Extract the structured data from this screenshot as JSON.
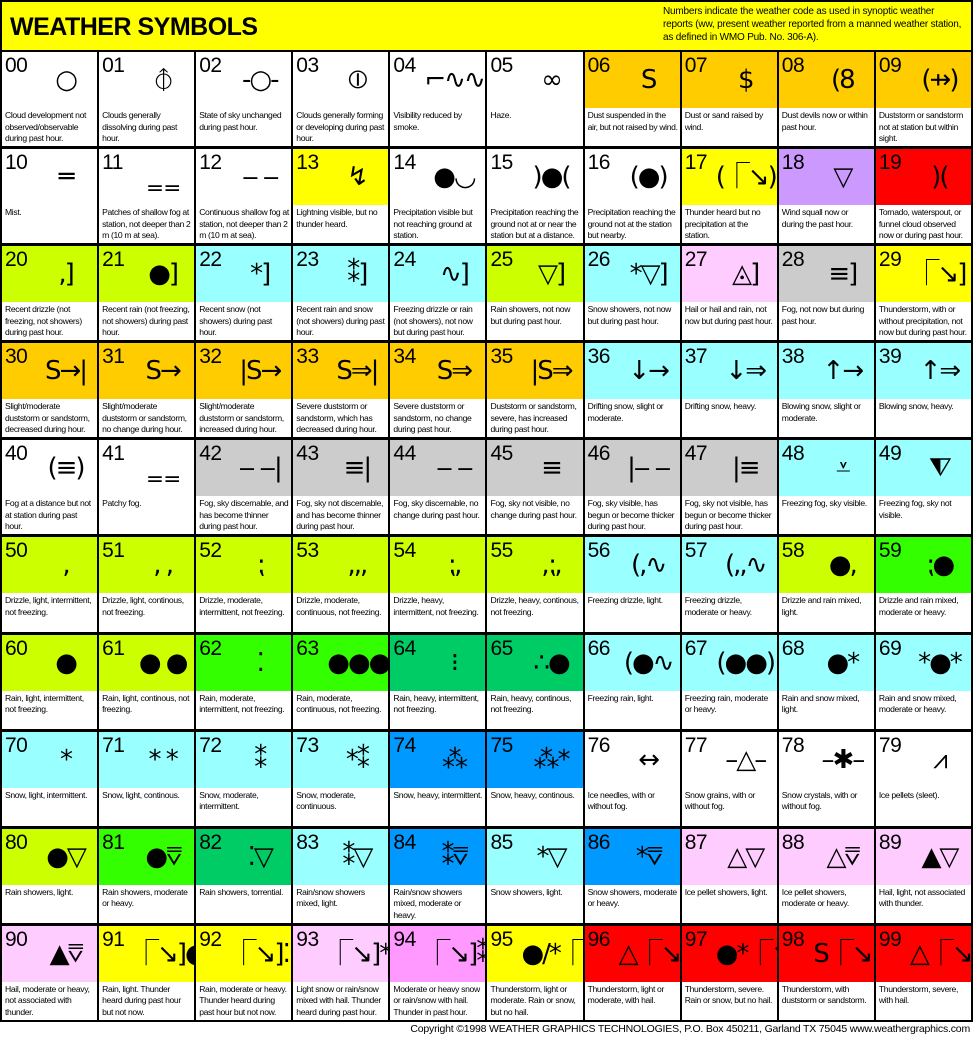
{
  "header": {
    "title": "WEATHER SYMBOLS",
    "note": "Numbers indicate the weather code as used in synoptic weather reports (ww, present weather reported from a manned weather station, as defined in WMO Pub. No. 306-A)."
  },
  "colors": {
    "white": "#ffffff",
    "orange": "#ffcc00",
    "yellow": "#ffff00",
    "purple": "#cc99ff",
    "red": "#ff0000",
    "lime": "#ccff00",
    "cyan": "#99ffff",
    "pink": "#ffccff",
    "gray": "#cccccc",
    "green": "#33ff00",
    "darkgreen": "#00cc66",
    "blue": "#0099ff",
    "magenta": "#ff99ff"
  },
  "cells": [
    {
      "code": "00",
      "color": "white",
      "glyph": "○",
      "symbol": "circle-dot-top",
      "desc": "Cloud development not observed/observable during past hour."
    },
    {
      "code": "01",
      "color": "white",
      "glyph": "⦽",
      "symbol": "circle-tick-bottom",
      "desc": "Clouds generally dissolving during past hour."
    },
    {
      "code": "02",
      "color": "white",
      "glyph": "-○-",
      "symbol": "circle-ticks-sides",
      "desc": "State of sky unchanged during past hour."
    },
    {
      "code": "03",
      "color": "white",
      "glyph": "⦶",
      "symbol": "circle-tick-top",
      "desc": "Clouds generally forming or developing during past hour."
    },
    {
      "code": "04",
      "color": "white",
      "glyph": "⌐∿∿",
      "symbol": "smoke",
      "desc": "Visibility reduced by smoke."
    },
    {
      "code": "05",
      "color": "white",
      "glyph": "∞",
      "symbol": "haze",
      "desc": "Haze."
    },
    {
      "code": "06",
      "color": "orange",
      "glyph": "S",
      "symbol": "dust",
      "desc": "Dust suspended in the air, but not raised by wind."
    },
    {
      "code": "07",
      "color": "orange",
      "glyph": "$",
      "symbol": "dust-raised",
      "desc": "Dust or sand raised by wind."
    },
    {
      "code": "08",
      "color": "orange",
      "glyph": "(8",
      "symbol": "dust-devil",
      "desc": "Dust devils now or within past hour."
    },
    {
      "code": "09",
      "color": "orange",
      "glyph": "(⇸)",
      "symbol": "duststorm-distant",
      "desc": "Duststorm or sandstorm not at station but within sight."
    },
    {
      "code": "10",
      "color": "white",
      "glyph": "═",
      "symbol": "mist",
      "desc": "Mist."
    },
    {
      "code": "11",
      "color": "white",
      "glyph": "‗ ‗",
      "symbol": "shallow-fog-patches",
      "desc": "Patches of shallow fog at station, not deeper than 2 m (10 m at sea)."
    },
    {
      "code": "12",
      "color": "white",
      "glyph": "‒ ‒",
      "symbol": "shallow-fog-continuous",
      "desc": "Continuous shallow fog at station, not deeper than 2 m (10 m at sea)."
    },
    {
      "code": "13",
      "color": "yellow",
      "glyph": "↯",
      "symbol": "lightning",
      "desc": "Lightning visible, but no thunder heard."
    },
    {
      "code": "14",
      "color": "white",
      "glyph": "●◡",
      "symbol": "virga",
      "desc": "Precipitation visible but not reaching ground at station."
    },
    {
      "code": "15",
      "color": "white",
      "glyph": ")●(",
      "symbol": "precip-distant",
      "desc": "Precipitation reaching the ground not at or near the station but at a distance."
    },
    {
      "code": "16",
      "color": "white",
      "glyph": "(●)",
      "symbol": "precip-nearby",
      "desc": "Precipitation reaching the ground not at the station but nearby."
    },
    {
      "code": "17",
      "color": "yellow",
      "glyph": "(⎾↘)",
      "symbol": "thunder",
      "desc": "Thunder heard but no precipitation at the station."
    },
    {
      "code": "18",
      "color": "purple",
      "glyph": "▽",
      "symbol": "squall",
      "desc": "Wind squall now or during the past hour."
    },
    {
      "code": "19",
      "color": "red",
      "glyph": ")(",
      "symbol": "funnel-cloud",
      "desc": "Tornado, waterspout, or funnel cloud observed now or during past hour."
    },
    {
      "code": "20",
      "color": "lime",
      "glyph": ",]",
      "symbol": "recent-drizzle",
      "desc": "Recent drizzle (not freezing, not showers) during past hour."
    },
    {
      "code": "21",
      "color": "lime",
      "glyph": "●]",
      "symbol": "recent-rain",
      "desc": "Recent rain (not freezing, not showers) during past hour."
    },
    {
      "code": "22",
      "color": "cyan",
      "glyph": "*]",
      "symbol": "recent-snow",
      "desc": "Recent snow (not showers) during past hour."
    },
    {
      "code": "23",
      "color": "cyan",
      "glyph": "⁑]",
      "symbol": "recent-rain-snow",
      "desc": "Recent rain and snow (not showers) during past hour."
    },
    {
      "code": "24",
      "color": "cyan",
      "glyph": "∿]",
      "symbol": "recent-freezing-rain",
      "desc": "Freezing drizzle or rain (not showers), not now but during past hour."
    },
    {
      "code": "25",
      "color": "lime",
      "glyph": "▽]",
      "symbol": "recent-rain-showers",
      "desc": "Rain showers, not now but during past hour."
    },
    {
      "code": "26",
      "color": "cyan",
      "glyph": "*▽]",
      "symbol": "recent-snow-showers",
      "desc": "Snow showers, not now but during past hour."
    },
    {
      "code": "27",
      "color": "pink",
      "glyph": "◬]",
      "symbol": "recent-hail",
      "desc": "Hail or hail and rain, not now but during past hour."
    },
    {
      "code": "28",
      "color": "gray",
      "glyph": "≡]",
      "symbol": "recent-fog",
      "desc": "Fog, not now but during past hour."
    },
    {
      "code": "29",
      "color": "yellow",
      "glyph": "⎾↘]",
      "symbol": "recent-thunderstorm",
      "desc": "Thunderstorm, with or without precipitation, not now but during past hour."
    },
    {
      "code": "30",
      "color": "orange",
      "glyph": "S→|",
      "symbol": "duststorm-decreased",
      "desc": "Slight/moderate duststorm or sandstorm, decreased during hour."
    },
    {
      "code": "31",
      "color": "orange",
      "glyph": "S→",
      "symbol": "duststorm-nochange",
      "desc": "Slight/moderate duststorm or sandstorm, no change during hour."
    },
    {
      "code": "32",
      "color": "orange",
      "glyph": "|S→",
      "symbol": "duststorm-increased",
      "desc": "Slight/moderate duststorm or sandstorm, increased during hour."
    },
    {
      "code": "33",
      "color": "orange",
      "glyph": "S⇒|",
      "symbol": "severe-duststorm-decreased",
      "desc": "Severe duststorm or sandstorm, which has decreased during hour."
    },
    {
      "code": "34",
      "color": "orange",
      "glyph": "S⇒",
      "symbol": "severe-duststorm-nochange",
      "desc": "Severe duststorm or sandstorm, no change during past hour."
    },
    {
      "code": "35",
      "color": "orange",
      "glyph": "|S⇒",
      "symbol": "severe-duststorm-increased",
      "desc": "Duststorm or sandstorm, severe, has increased during past hour."
    },
    {
      "code": "36",
      "color": "cyan",
      "glyph": "↓→",
      "symbol": "drifting-snow",
      "desc": "Drifting snow, slight or moderate."
    },
    {
      "code": "37",
      "color": "cyan",
      "glyph": "↓⇒",
      "symbol": "drifting-snow-heavy",
      "desc": "Drifting snow, heavy."
    },
    {
      "code": "38",
      "color": "cyan",
      "glyph": "↑→",
      "symbol": "blowing-snow",
      "desc": "Blowing snow, slight or moderate."
    },
    {
      "code": "39",
      "color": "cyan",
      "glyph": "↑⇒",
      "symbol": "blowing-snow-heavy",
      "desc": "Blowing snow, heavy."
    },
    {
      "code": "40",
      "color": "white",
      "glyph": "(≡)",
      "symbol": "fog-distance",
      "desc": "Fog at a distance but not at station during past hour."
    },
    {
      "code": "41",
      "color": "white",
      "glyph": "‗ ‗",
      "symbol": "patchy-fog",
      "desc": "Patchy fog."
    },
    {
      "code": "42",
      "color": "gray",
      "glyph": "‒ ‒|",
      "symbol": "fog-thinner-sky",
      "desc": "Fog, sky discernable, and has become thinner during past hour."
    },
    {
      "code": "43",
      "color": "gray",
      "glyph": "≡|",
      "symbol": "fog-thinner",
      "desc": "Fog, sky not discernable, and has become thinner during past hour."
    },
    {
      "code": "44",
      "color": "gray",
      "glyph": "‒ ‒",
      "symbol": "fog-nochange-sky",
      "desc": "Fog, sky discernable, no change during past hour."
    },
    {
      "code": "45",
      "color": "gray",
      "glyph": "≡",
      "symbol": "fog-nochange",
      "desc": "Fog, sky not visible, no change during past hour."
    },
    {
      "code": "46",
      "color": "gray",
      "glyph": "|‒ ‒",
      "symbol": "fog-thicker-sky",
      "desc": "Fog, sky visible, has begun or become thicker during past hour."
    },
    {
      "code": "47",
      "color": "gray",
      "glyph": "|≡",
      "symbol": "fog-thicker",
      "desc": "Fog, sky not visible, has begun or become thicker during past hour."
    },
    {
      "code": "48",
      "color": "cyan",
      "glyph": "⩡",
      "symbol": "freezing-fog-sky",
      "desc": "Freezing fog, sky visible."
    },
    {
      "code": "49",
      "color": "cyan",
      "glyph": "⧨",
      "symbol": "freezing-fog",
      "desc": "Freezing fog, sky not visible."
    },
    {
      "code": "50",
      "color": "lime",
      "glyph": ",",
      "symbol": "drizzle-light-intermittent",
      "desc": "Drizzle, light, intermittent, not freezing."
    },
    {
      "code": "51",
      "color": "lime",
      "glyph": ", ,",
      "symbol": "drizzle-light-continuous",
      "desc": "Drizzle, light, continous, not freezing."
    },
    {
      "code": "52",
      "color": "lime",
      "glyph": "⁏",
      "symbol": "drizzle-moderate-intermittent",
      "desc": "Drizzle, moderate, intermittent, not freezing."
    },
    {
      "code": "53",
      "color": "lime",
      "glyph": ",,,",
      "symbol": "drizzle-moderate-continuous",
      "desc": "Drizzle, moderate, continuous, not freezing."
    },
    {
      "code": "54",
      "color": "lime",
      "glyph": "⁏,",
      "symbol": "drizzle-heavy-intermittent",
      "desc": "Drizzle, heavy, intermittent, not freezing."
    },
    {
      "code": "55",
      "color": "lime",
      "glyph": ",⁏,",
      "symbol": "drizzle-heavy-continuous",
      "desc": "Drizzle, heavy, continous, not freezing."
    },
    {
      "code": "56",
      "color": "cyan",
      "glyph": "(,∿",
      "symbol": "freezing-drizzle-light",
      "desc": "Freezing drizzle, light."
    },
    {
      "code": "57",
      "color": "cyan",
      "glyph": "(,,∿",
      "symbol": "freezing-drizzle-heavy",
      "desc": "Freezing drizzle, moderate or heavy."
    },
    {
      "code": "58",
      "color": "lime",
      "glyph": "●,",
      "symbol": "drizzle-rain-light",
      "desc": "Drizzle and rain mixed, light."
    },
    {
      "code": "59",
      "color": "green",
      "glyph": "⁏●",
      "symbol": "drizzle-rain-heavy",
      "desc": "Drizzle and rain mixed, moderate or heavy."
    },
    {
      "code": "60",
      "color": "lime",
      "glyph": "●",
      "symbol": "rain-light-intermittent",
      "desc": "Rain, light, intermittent, not freezing."
    },
    {
      "code": "61",
      "color": "lime",
      "glyph": "● ●",
      "symbol": "rain-light-continuous",
      "desc": "Rain, light, continous, not freezing."
    },
    {
      "code": "62",
      "color": "green",
      "glyph": "⁚",
      "symbol": "rain-moderate-intermittent",
      "desc": "Rain, moderate, intermittent, not freezing."
    },
    {
      "code": "63",
      "color": "green",
      "glyph": "●●●",
      "symbol": "rain-moderate-continuous",
      "desc": "Rain, moderate, continuous, not freezing."
    },
    {
      "code": "64",
      "color": "darkgreen",
      "glyph": "⁝",
      "symbol": "rain-heavy-intermittent",
      "desc": "Rain, heavy, intermittent, not freezing."
    },
    {
      "code": "65",
      "color": "darkgreen",
      "glyph": "∴●",
      "symbol": "rain-heavy-continuous",
      "desc": "Rain, heavy, continous, not freezing."
    },
    {
      "code": "66",
      "color": "cyan",
      "glyph": "(●∿",
      "symbol": "freezing-rain-light",
      "desc": "Freezing rain, light."
    },
    {
      "code": "67",
      "color": "cyan",
      "glyph": "(●●)",
      "symbol": "freezing-rain-heavy",
      "desc": "Freezing rain, moderate or heavy."
    },
    {
      "code": "68",
      "color": "cyan",
      "glyph": "●*",
      "symbol": "rain-snow-light",
      "desc": "Rain and snow mixed, light."
    },
    {
      "code": "69",
      "color": "cyan",
      "glyph": "*●*",
      "symbol": "rain-snow-heavy",
      "desc": "Rain and snow mixed, moderate or heavy."
    },
    {
      "code": "70",
      "color": "cyan",
      "glyph": "*",
      "symbol": "snow-light-intermittent",
      "desc": "Snow, light, intermittent."
    },
    {
      "code": "71",
      "color": "cyan",
      "glyph": "* *",
      "symbol": "snow-light-continuous",
      "desc": "Snow, light, continous."
    },
    {
      "code": "72",
      "color": "cyan",
      "glyph": "⁑",
      "symbol": "snow-moderate-intermittent",
      "desc": "Snow, moderate, intermittent."
    },
    {
      "code": "73",
      "color": "cyan",
      "glyph": "*⁑",
      "symbol": "snow-moderate-continuous",
      "desc": "Snow, moderate, continuous."
    },
    {
      "code": "74",
      "color": "blue",
      "glyph": "⁂",
      "symbol": "snow-heavy-intermittent",
      "desc": "Snow, heavy, intermittent."
    },
    {
      "code": "75",
      "color": "blue",
      "glyph": "⁂*",
      "symbol": "snow-heavy-continuous",
      "desc": "Snow, heavy, continous."
    },
    {
      "code": "76",
      "color": "white",
      "glyph": "↔",
      "symbol": "ice-needles",
      "desc": "Ice needles, with or without fog."
    },
    {
      "code": "77",
      "color": "white",
      "glyph": "–△–",
      "symbol": "snow-grains",
      "desc": "Snow grains, with or without fog."
    },
    {
      "code": "78",
      "color": "white",
      "glyph": "–✱–",
      "symbol": "snow-crystals",
      "desc": "Snow crystals, with or without fog."
    },
    {
      "code": "79",
      "color": "white",
      "glyph": "⩘",
      "symbol": "ice-pellets",
      "desc": "Ice pellets (sleet)."
    },
    {
      "code": "80",
      "color": "lime",
      "glyph": "●▽",
      "symbol": "rain-showers-light",
      "desc": "Rain showers, light."
    },
    {
      "code": "81",
      "color": "green",
      "glyph": "●⩢",
      "symbol": "rain-showers-heavy",
      "desc": "Rain showers, moderate or heavy."
    },
    {
      "code": "82",
      "color": "darkgreen",
      "glyph": "⁚▽",
      "symbol": "rain-showers-torrential",
      "desc": "Rain showers, torrential."
    },
    {
      "code": "83",
      "color": "cyan",
      "glyph": "⁑▽",
      "symbol": "rain-snow-showers-light",
      "desc": "Rain/snow showers mixed, light."
    },
    {
      "code": "84",
      "color": "blue",
      "glyph": "⁑⩢",
      "symbol": "rain-snow-showers-heavy",
      "desc": "Rain/snow showers mixed, moderate or heavy."
    },
    {
      "code": "85",
      "color": "cyan",
      "glyph": "*▽",
      "symbol": "snow-showers-light",
      "desc": "Snow showers, light."
    },
    {
      "code": "86",
      "color": "blue",
      "glyph": "*⩢",
      "symbol": "snow-showers-heavy",
      "desc": "Snow showers, moderate or heavy."
    },
    {
      "code": "87",
      "color": "pink",
      "glyph": "△▽",
      "symbol": "ice-pellet-showers-light",
      "desc": "Ice pellet showers, light."
    },
    {
      "code": "88",
      "color": "pink",
      "glyph": "△⩢",
      "symbol": "ice-pellet-showers-heavy",
      "desc": "Ice pellet showers, moderate or heavy."
    },
    {
      "code": "89",
      "color": "pink",
      "glyph": "▲▽",
      "symbol": "hail-light",
      "desc": "Hail, light, not associated with thunder."
    },
    {
      "code": "90",
      "color": "pink",
      "glyph": "▲⩢",
      "symbol": "hail-heavy",
      "desc": "Hail, moderate or heavy, not associated with thunder."
    },
    {
      "code": "91",
      "color": "yellow",
      "glyph": "⎾↘]●",
      "symbol": "thunder-rain-light",
      "desc": "Rain, light.  Thunder heard during past hour but not now."
    },
    {
      "code": "92",
      "color": "yellow",
      "glyph": "⎾↘]⁚",
      "symbol": "thunder-rain-heavy",
      "desc": "Rain, moderate or heavy. Thunder heard during past hour but not now."
    },
    {
      "code": "93",
      "color": "pink",
      "glyph": "⎾↘]*/△",
      "symbol": "thunder-snow-light",
      "desc": "Light snow or rain/snow mixed with hail.  Thunder heard during past hour."
    },
    {
      "code": "94",
      "color": "magenta",
      "glyph": "⎾↘]⁑/△",
      "symbol": "thunder-snow-heavy",
      "desc": "Moderate or heavy snow or rain/snow with hail. Thunder in past hour."
    },
    {
      "code": "95",
      "color": "yellow",
      "glyph": "●/*⎾↘",
      "symbol": "thunderstorm-light",
      "desc": "Thunderstorm, light or moderate.  Rain or snow, but no hail."
    },
    {
      "code": "96",
      "color": "red",
      "glyph": "△⎾↘",
      "symbol": "thunderstorm-hail",
      "desc": "Thunderstorm, light or moderate, with hail."
    },
    {
      "code": "97",
      "color": "red",
      "glyph": "●*⎾↘",
      "symbol": "thunderstorm-severe",
      "desc": "Thunderstorm, severe. Rain or snow, but no hail."
    },
    {
      "code": "98",
      "color": "red",
      "glyph": "S⎾↘",
      "symbol": "thunderstorm-duststorm",
      "desc": "Thunderstorm, with duststorm or sandstorm."
    },
    {
      "code": "99",
      "color": "red",
      "glyph": "△⎾↘",
      "symbol": "thunderstorm-severe-hail",
      "desc": "Thunderstorm, severe, with hail."
    }
  ],
  "footer": {
    "copyright": "Copyright ©1998 WEATHER GRAPHICS TECHNOLOGIES, P.O. Box 450211, Garland TX 75045 www.weathergraphics.com"
  }
}
